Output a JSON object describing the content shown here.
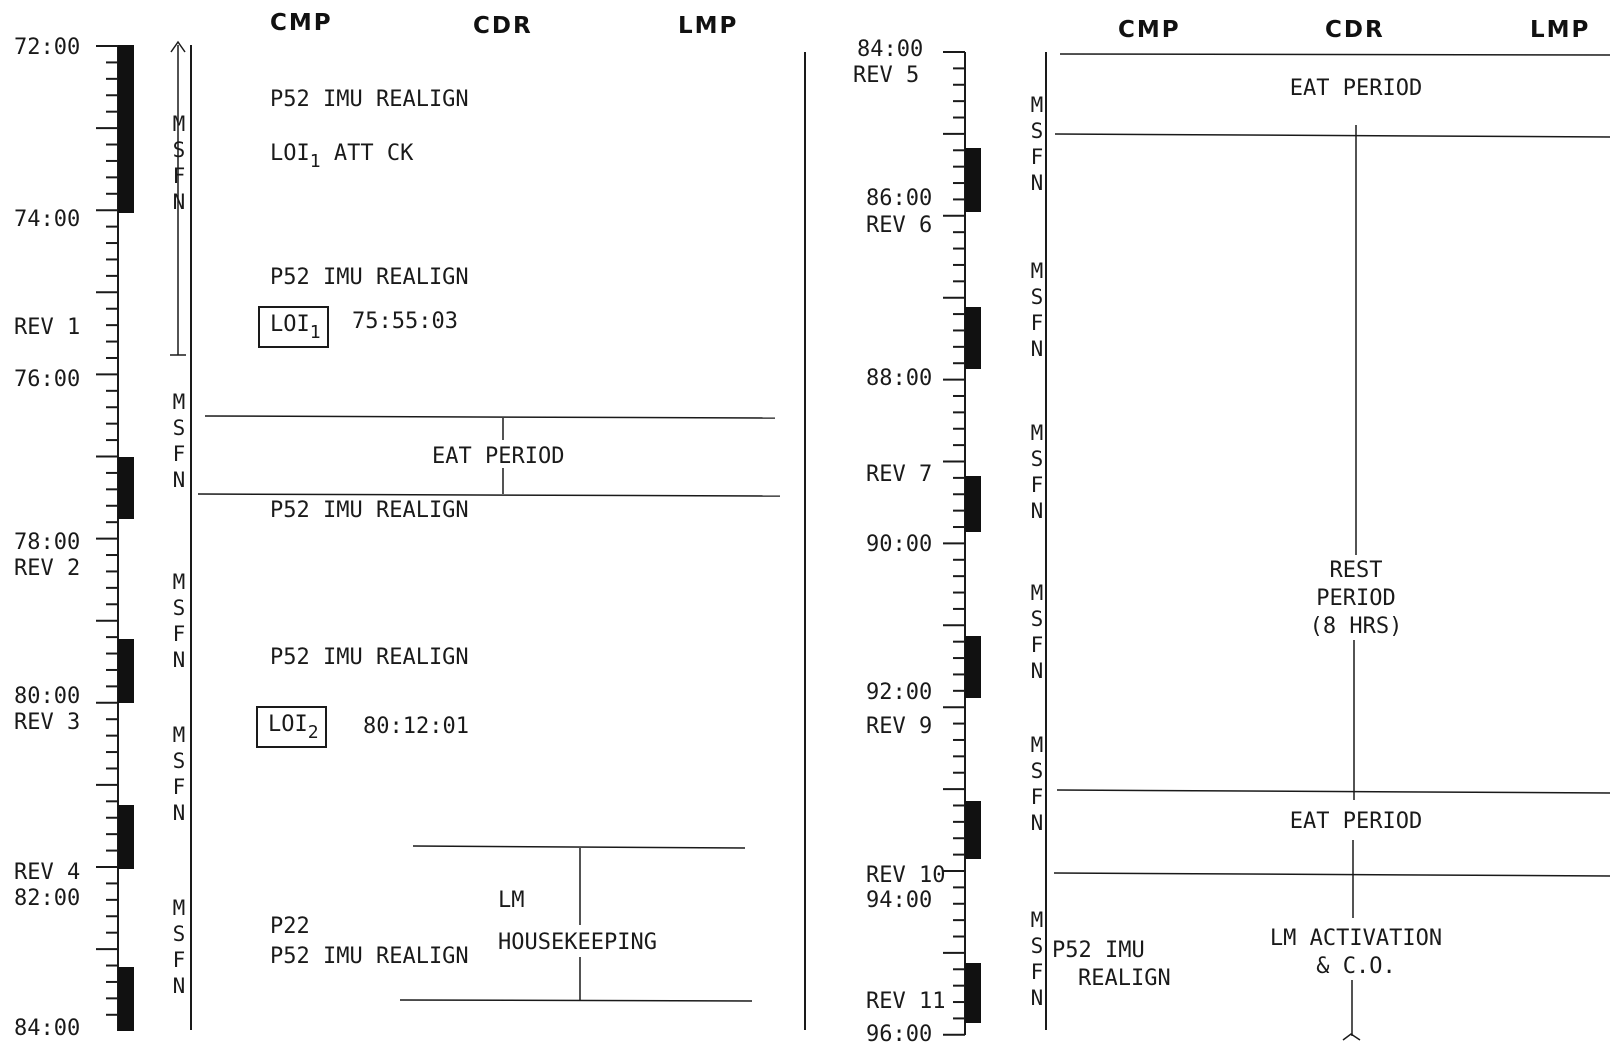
{
  "left": {
    "headers": {
      "cmp": "CMP",
      "cdr": "CDR",
      "lmp": "LMP"
    },
    "time_labels": [
      {
        "text": "72:00"
      },
      {
        "text": "74:00"
      },
      {
        "text": "REV 1"
      },
      {
        "text": "76:00"
      },
      {
        "text": "78:00"
      },
      {
        "text": "REV 2"
      },
      {
        "text": "80:00"
      },
      {
        "text": "REV 3"
      },
      {
        "text": "REV 4"
      },
      {
        "text": "82:00"
      },
      {
        "text": "84:00"
      }
    ],
    "activities": {
      "p52_a": "P52 IMU REALIGN",
      "loi1_att_ck": {
        "main": "LOI",
        "sub": "1",
        "rest": " ATT CK"
      },
      "p52_b": "P52 IMU REALIGN",
      "loi1_burn": {
        "main": "LOI",
        "sub": "1",
        "time": "75:55:03"
      },
      "eat_period": "EAT PERIOD",
      "p52_c": "P52 IMU REALIGN",
      "p52_d": "P52 IMU REALIGN",
      "loi2_burn": {
        "main": "LOI",
        "sub": "2",
        "time": "80:12:01"
      },
      "lm": "LM",
      "housekeeping": "HOUSEKEEPING",
      "p22": "P22",
      "p52_e": "P52 IMU REALIGN"
    },
    "msfn": "MSFN"
  },
  "right": {
    "headers": {
      "cmp": "CMP",
      "cdr": "CDR",
      "lmp": "LMP"
    },
    "time_labels": [
      {
        "text": "84:00"
      },
      {
        "text": "REV 5"
      },
      {
        "text": "86:00"
      },
      {
        "text": "REV 6"
      },
      {
        "text": "88:00"
      },
      {
        "text": "REV 7"
      },
      {
        "text": "90:00"
      },
      {
        "text": "92:00"
      },
      {
        "text": "REV 9"
      },
      {
        "text": "REV 10"
      },
      {
        "text": "94:00"
      },
      {
        "text": "REV 11"
      },
      {
        "text": "96:00"
      }
    ],
    "activities": {
      "eat_period_a": "EAT PERIOD",
      "rest_l1": "REST",
      "rest_l2": "PERIOD",
      "rest_l3": "(8 HRS)",
      "eat_period_b": "EAT PERIOD",
      "lm_activation_l1": "LM ACTIVATION",
      "lm_activation_l2": "& C.O.",
      "p52_l1": "P52 IMU",
      "p52_l2": "REALIGN"
    },
    "msfn": "MSFN"
  }
}
